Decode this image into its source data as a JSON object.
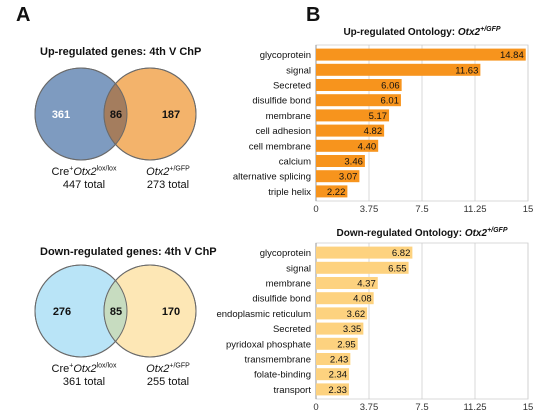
{
  "panels": {
    "a": "A",
    "b": "B"
  },
  "venn_up": {
    "title": "Up-regulated genes: 4th V ChP",
    "left_count": "361",
    "overlap_count": "86",
    "right_count": "187",
    "left_label_prefix": "Cre",
    "left_label_sup1": "+",
    "left_label_gene": "Otx2",
    "left_label_sup2": "lox/lox",
    "left_total": "447 total",
    "right_label_gene": "Otx2",
    "right_label_sup": "+/GFP",
    "right_total": "273 total",
    "colors": {
      "left": "#7e9bc0",
      "overlap": "#a47d5e",
      "right": "#f3b36b"
    }
  },
  "venn_down": {
    "title": "Down-regulated genes: 4th V ChP",
    "left_count": "276",
    "overlap_count": "85",
    "right_count": "170",
    "left_label_prefix": "Cre",
    "left_label_sup1": "+",
    "left_label_gene": "Otx2",
    "left_label_sup2": "lox/lox",
    "left_total": "361 total",
    "right_label_gene": "Otx2",
    "right_label_sup": "+/GFP",
    "right_total": "255 total",
    "colors": {
      "left": "#b9e4f7",
      "overlap": "#c7dcc0",
      "right": "#fde7b5"
    }
  },
  "chart_data": [
    {
      "type": "bar",
      "orientation": "horizontal",
      "title": "Up-regulated Ontology: ",
      "title_gene": "Otx2",
      "title_sup": "+/GFP",
      "categories": [
        "glycoprotein",
        "signal",
        "Secreted",
        "disulfide bond",
        "membrane",
        "cell adhesion",
        "cell membrane",
        "calcium",
        "alternative splicing",
        "triple helix"
      ],
      "values": [
        14.84,
        11.63,
        6.06,
        6.01,
        5.17,
        4.82,
        4.4,
        3.46,
        3.07,
        2.22
      ],
      "value_labels": [
        "14.84",
        "11.63",
        "6.06",
        "6.01",
        "5.17",
        "4.82",
        "4.40",
        "3.46",
        "3.07",
        "2.22"
      ],
      "xlim": [
        0,
        15
      ],
      "ticks": [
        0,
        3.75,
        7.5,
        11.25,
        15
      ],
      "tick_labels": [
        "0",
        "3.75",
        "7.5",
        "11.25",
        "15"
      ],
      "grid": true,
      "bar_color": "#f7941d"
    },
    {
      "type": "bar",
      "orientation": "horizontal",
      "title": "Down-regulated Ontology: ",
      "title_gene": "Otx2",
      "title_sup": "+/GFP",
      "categories": [
        "glycoprotein",
        "signal",
        "membrane",
        "disulfide bond",
        "endoplasmic reticulum",
        "Secreted",
        "pyridoxal phosphate",
        "transmembrane",
        "folate-binding",
        "transport"
      ],
      "values": [
        6.82,
        6.55,
        4.37,
        4.08,
        3.62,
        3.35,
        2.95,
        2.43,
        2.34,
        2.33
      ],
      "value_labels": [
        "6.82",
        "6.55",
        "4.37",
        "4.08",
        "3.62",
        "3.35",
        "2.95",
        "2.43",
        "2.34",
        "2.33"
      ],
      "xlim": [
        0,
        15
      ],
      "ticks": [
        0,
        3.75,
        7.5,
        11.25,
        15
      ],
      "tick_labels": [
        "0",
        "3.75",
        "7.5",
        "11.25",
        "15"
      ],
      "grid": true,
      "bar_color": "#fdd27f"
    }
  ]
}
